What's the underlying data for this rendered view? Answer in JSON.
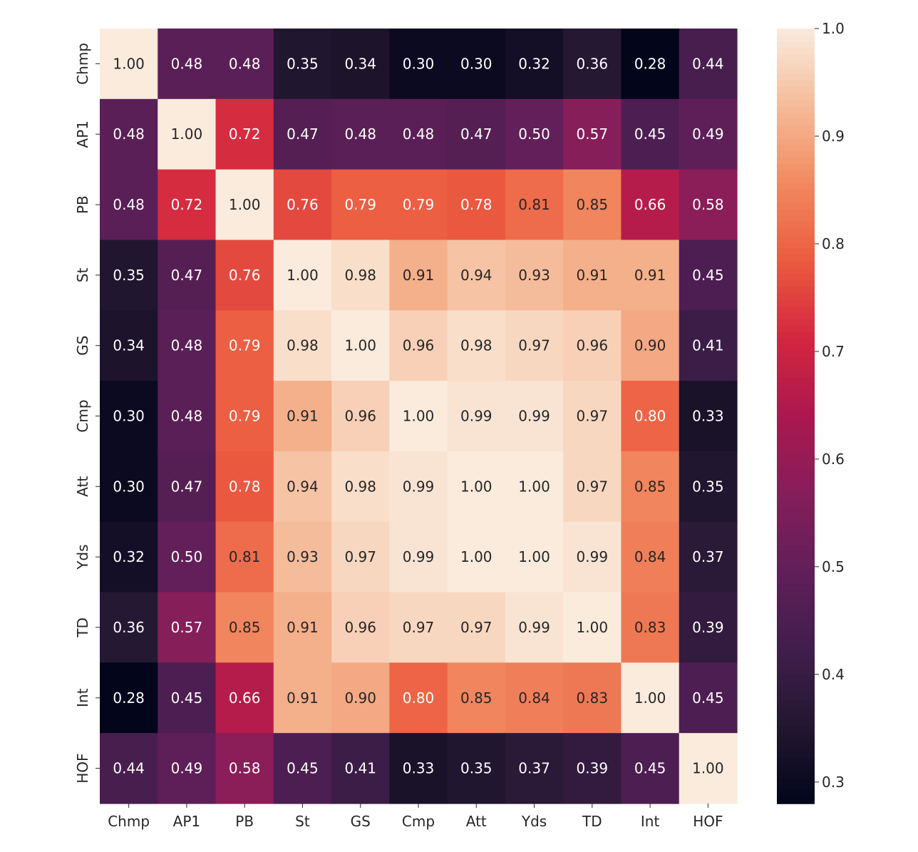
{
  "chart_data": {
    "type": "heatmap",
    "title": "",
    "xlabel": "",
    "ylabel": "",
    "row_labels": [
      "Chmp",
      "AP1",
      "PB",
      "St",
      "GS",
      "Cmp",
      "Att",
      "Yds",
      "TD",
      "Int",
      "HOF"
    ],
    "col_labels": [
      "Chmp",
      "AP1",
      "PB",
      "St",
      "GS",
      "Cmp",
      "Att",
      "Yds",
      "TD",
      "Int",
      "HOF"
    ],
    "values": [
      [
        1.0,
        0.48,
        0.48,
        0.35,
        0.34,
        0.3,
        0.3,
        0.32,
        0.36,
        0.28,
        0.44
      ],
      [
        0.48,
        1.0,
        0.72,
        0.47,
        0.48,
        0.48,
        0.47,
        0.5,
        0.57,
        0.45,
        0.49
      ],
      [
        0.48,
        0.72,
        1.0,
        0.76,
        0.79,
        0.79,
        0.78,
        0.81,
        0.85,
        0.66,
        0.58
      ],
      [
        0.35,
        0.47,
        0.76,
        1.0,
        0.98,
        0.91,
        0.94,
        0.93,
        0.91,
        0.91,
        0.45
      ],
      [
        0.34,
        0.48,
        0.79,
        0.98,
        1.0,
        0.96,
        0.98,
        0.97,
        0.96,
        0.9,
        0.41
      ],
      [
        0.3,
        0.48,
        0.79,
        0.91,
        0.96,
        1.0,
        0.99,
        0.99,
        0.97,
        0.8,
        0.33
      ],
      [
        0.3,
        0.47,
        0.78,
        0.94,
        0.98,
        0.99,
        1.0,
        1.0,
        0.97,
        0.85,
        0.35
      ],
      [
        0.32,
        0.5,
        0.81,
        0.93,
        0.97,
        0.99,
        1.0,
        1.0,
        0.99,
        0.84,
        0.37
      ],
      [
        0.36,
        0.57,
        0.85,
        0.91,
        0.96,
        0.97,
        0.97,
        0.99,
        1.0,
        0.83,
        0.39
      ],
      [
        0.28,
        0.45,
        0.66,
        0.91,
        0.9,
        0.8,
        0.85,
        0.84,
        0.83,
        1.0,
        0.45
      ],
      [
        0.44,
        0.49,
        0.58,
        0.45,
        0.41,
        0.33,
        0.35,
        0.37,
        0.39,
        0.45,
        1.0
      ]
    ],
    "value_format": "2 decimals",
    "colormap": "rocket",
    "vmin": 0.28,
    "vmax": 1.0,
    "colorbar": {
      "ticks": [
        0.3,
        0.4,
        0.5,
        0.6,
        0.7,
        0.8,
        0.9,
        1.0
      ],
      "tick_labels": [
        "0.3",
        "0.4",
        "0.5",
        "0.6",
        "0.7",
        "0.8",
        "0.9",
        "1.0"
      ],
      "position": "right"
    },
    "annotation_colors": {
      "dark_cell_text": "#ffffff",
      "light_cell_text": "#262626"
    },
    "grid": false
  }
}
